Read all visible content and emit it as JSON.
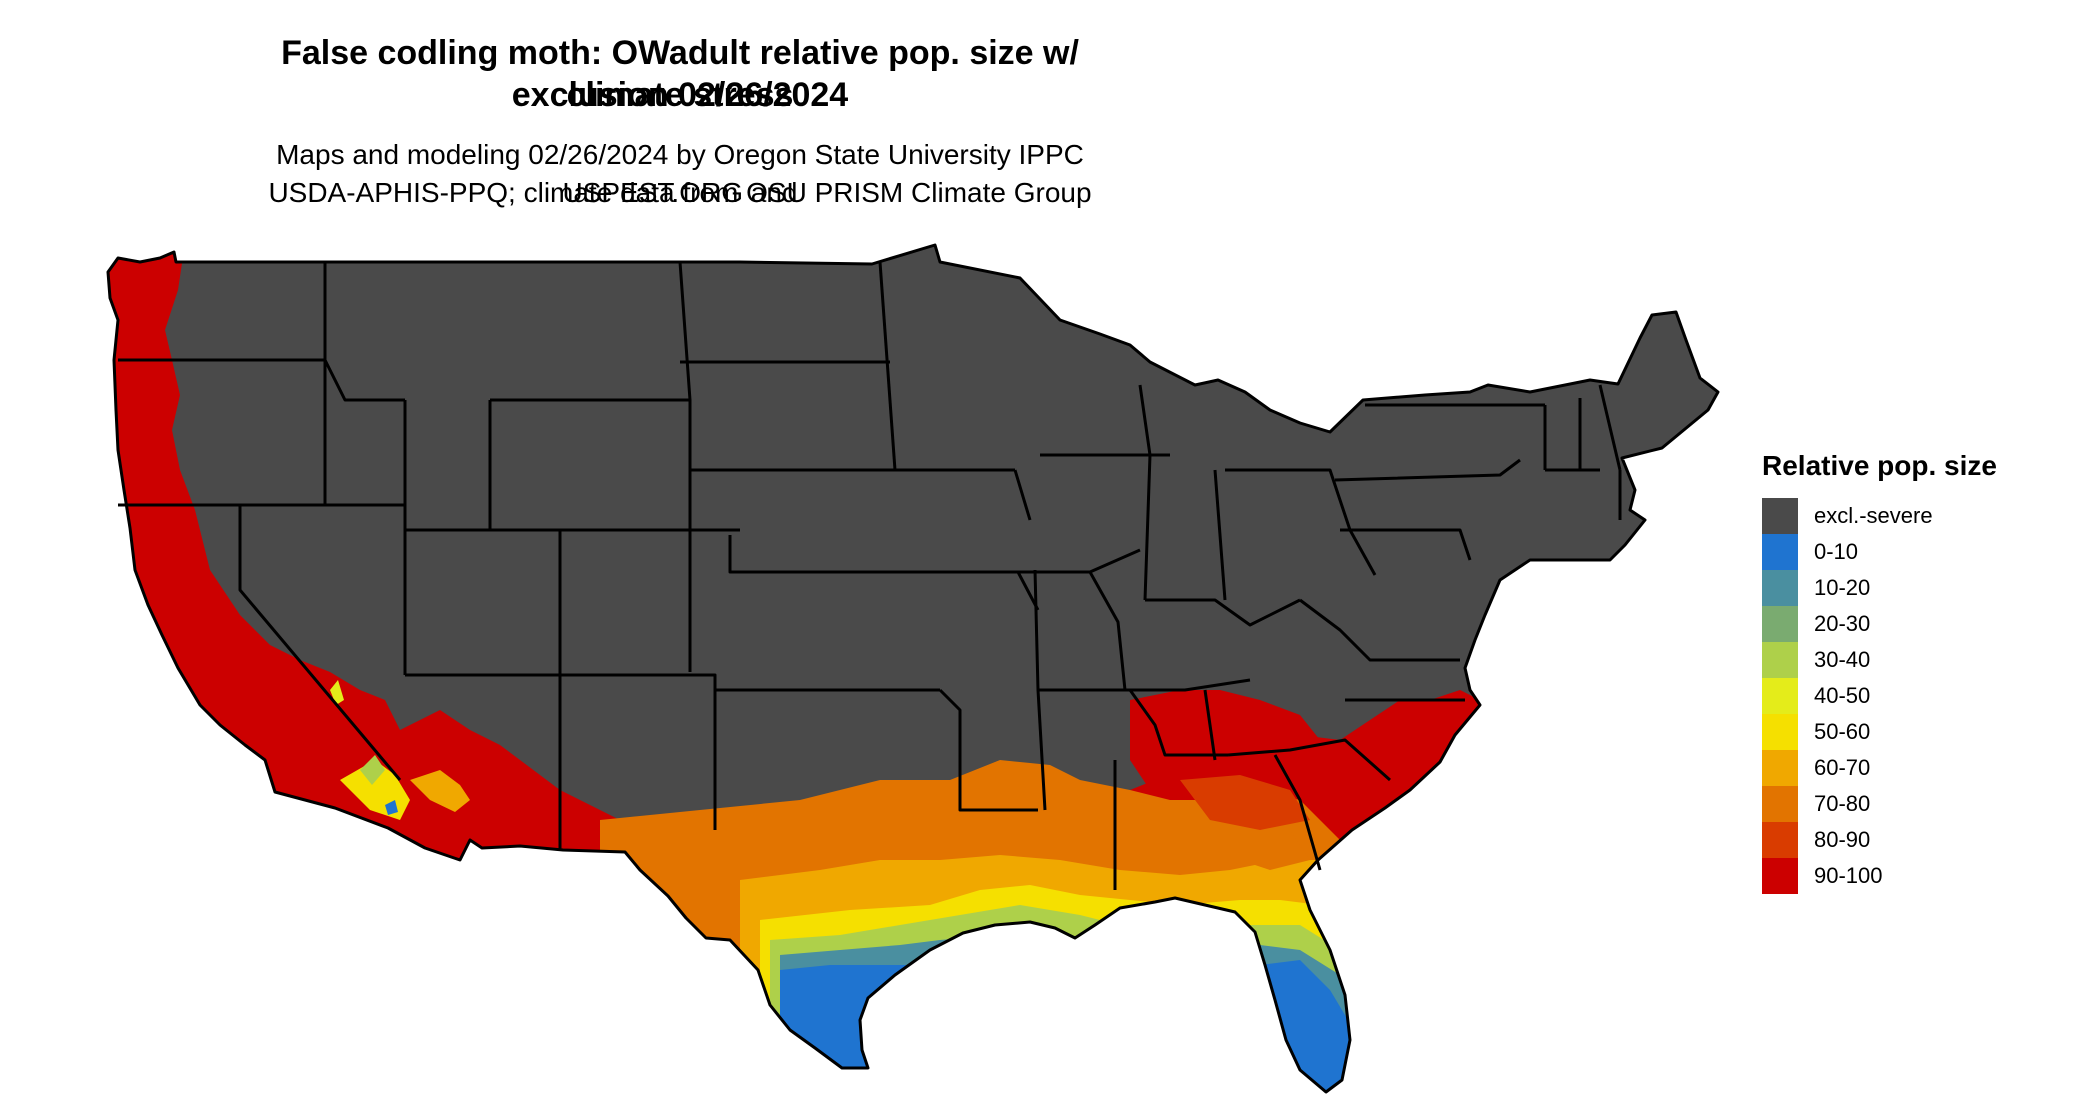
{
  "title": {
    "line1": "False codling moth: OWadult relative pop. size w/ climate stress",
    "line2": "exclusion 02/26/2024"
  },
  "subtitle": {
    "line1": "Maps and modeling 02/26/2024 by Oregon State University IPPC USPEST.ORG and",
    "line2": "USDA-APHIS-PPQ; climate data from OSU PRISM Climate Group"
  },
  "legend": {
    "title": "Relative pop. size",
    "items": [
      {
        "label": "excl.-severe",
        "color": "#4a4a4a"
      },
      {
        "label": "0-10",
        "color": "#1f74d0"
      },
      {
        "label": "10-20",
        "color": "#4a8fa0"
      },
      {
        "label": "20-30",
        "color": "#7aab70"
      },
      {
        "label": "30-40",
        "color": "#aed04a"
      },
      {
        "label": "40-50",
        "color": "#e4ec1a"
      },
      {
        "label": "50-60",
        "color": "#f5e000"
      },
      {
        "label": "60-70",
        "color": "#f0a800"
      },
      {
        "label": "70-80",
        "color": "#e27400"
      },
      {
        "label": "80-90",
        "color": "#d93c00"
      },
      {
        "label": "90-100",
        "color": "#cc0000"
      }
    ]
  }
}
